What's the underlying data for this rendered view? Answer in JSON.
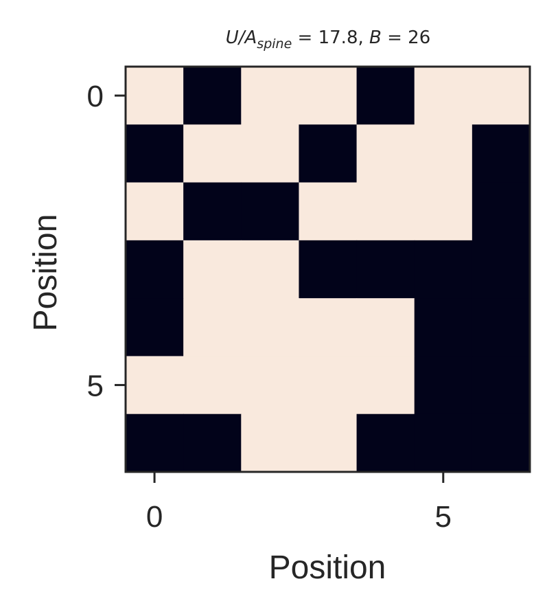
{
  "chart_data": {
    "type": "heatmap",
    "title": {
      "base": "U/A",
      "subscript": "spine",
      "rest": " = 17.8, ",
      "b_symbol": "B",
      "b_rest": " = 26"
    },
    "xlabel": "Position",
    "ylabel": "Position",
    "x_ticks": [
      0,
      5
    ],
    "y_ticks": [
      0,
      5
    ],
    "x_tick_labels": [
      "0",
      "5"
    ],
    "y_tick_labels": [
      "0",
      "5"
    ],
    "xlim": [
      -0.5,
      6.5
    ],
    "ylim": [
      -0.5,
      6.5
    ],
    "grid": false,
    "colors": {
      "on": "#02031a",
      "off": "#f9e9dd",
      "frame": "#262626"
    },
    "matrix": [
      [
        0,
        1,
        0,
        0,
        1,
        0,
        0
      ],
      [
        1,
        0,
        0,
        1,
        0,
        0,
        1
      ],
      [
        0,
        1,
        1,
        0,
        0,
        0,
        1
      ],
      [
        1,
        0,
        0,
        1,
        1,
        1,
        1
      ],
      [
        1,
        0,
        0,
        0,
        0,
        1,
        1
      ],
      [
        0,
        0,
        0,
        0,
        0,
        1,
        1
      ],
      [
        1,
        1,
        0,
        0,
        1,
        1,
        1
      ]
    ]
  }
}
